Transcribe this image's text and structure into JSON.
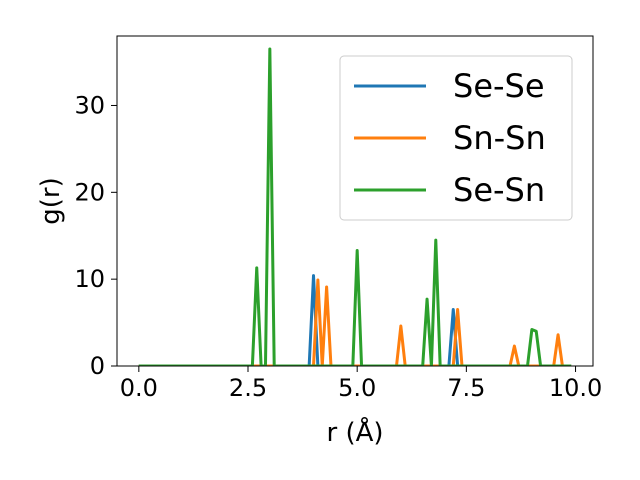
{
  "chart_data": {
    "type": "line",
    "xlabel": "r (Å)",
    "ylabel": "g(r)",
    "xlim": [
      -0.5,
      10.4
    ],
    "ylim": [
      0,
      38
    ],
    "xticks": [
      "0.0",
      "2.5",
      "5.0",
      "7.5",
      "10.0"
    ],
    "xtick_values": [
      0.0,
      2.5,
      5.0,
      7.5,
      10.0
    ],
    "yticks": [
      "0",
      "10",
      "20",
      "30"
    ],
    "ytick_values": [
      0,
      10,
      20,
      30
    ],
    "legend_position": "upper-right",
    "grid": false,
    "series": [
      {
        "name": "Se-Se",
        "color": "#1f77b4",
        "x": [
          0.0,
          3.9,
          4.0,
          4.1,
          7.1,
          7.2,
          7.3,
          9.9
        ],
        "y": [
          0,
          0,
          10.4,
          0,
          0,
          6.5,
          0,
          0
        ]
      },
      {
        "name": "Sn-Sn",
        "color": "#ff7f0e",
        "x": [
          0.0,
          4.0,
          4.1,
          4.2,
          4.3,
          4.4,
          5.9,
          6.0,
          6.1,
          7.2,
          7.3,
          7.4,
          8.5,
          8.6,
          8.7,
          9.5,
          9.6,
          9.7,
          9.9
        ],
        "y": [
          0,
          0,
          9.9,
          0,
          9.1,
          0,
          0,
          4.6,
          0,
          0,
          6.5,
          0,
          0,
          2.3,
          0,
          0,
          3.6,
          0,
          0
        ]
      },
      {
        "name": "Se-Sn",
        "color": "#2ca02c",
        "x": [
          0.0,
          2.6,
          2.7,
          2.8,
          2.9,
          3.0,
          3.1,
          4.9,
          5.0,
          5.1,
          6.5,
          6.6,
          6.7,
          6.8,
          6.9,
          8.9,
          9.0,
          9.1,
          9.2,
          9.9
        ],
        "y": [
          0,
          0,
          11.3,
          0,
          0,
          36.5,
          0,
          0,
          13.3,
          0,
          0,
          7.7,
          0,
          14.5,
          0,
          0,
          4.2,
          4.0,
          0,
          0
        ]
      }
    ]
  }
}
